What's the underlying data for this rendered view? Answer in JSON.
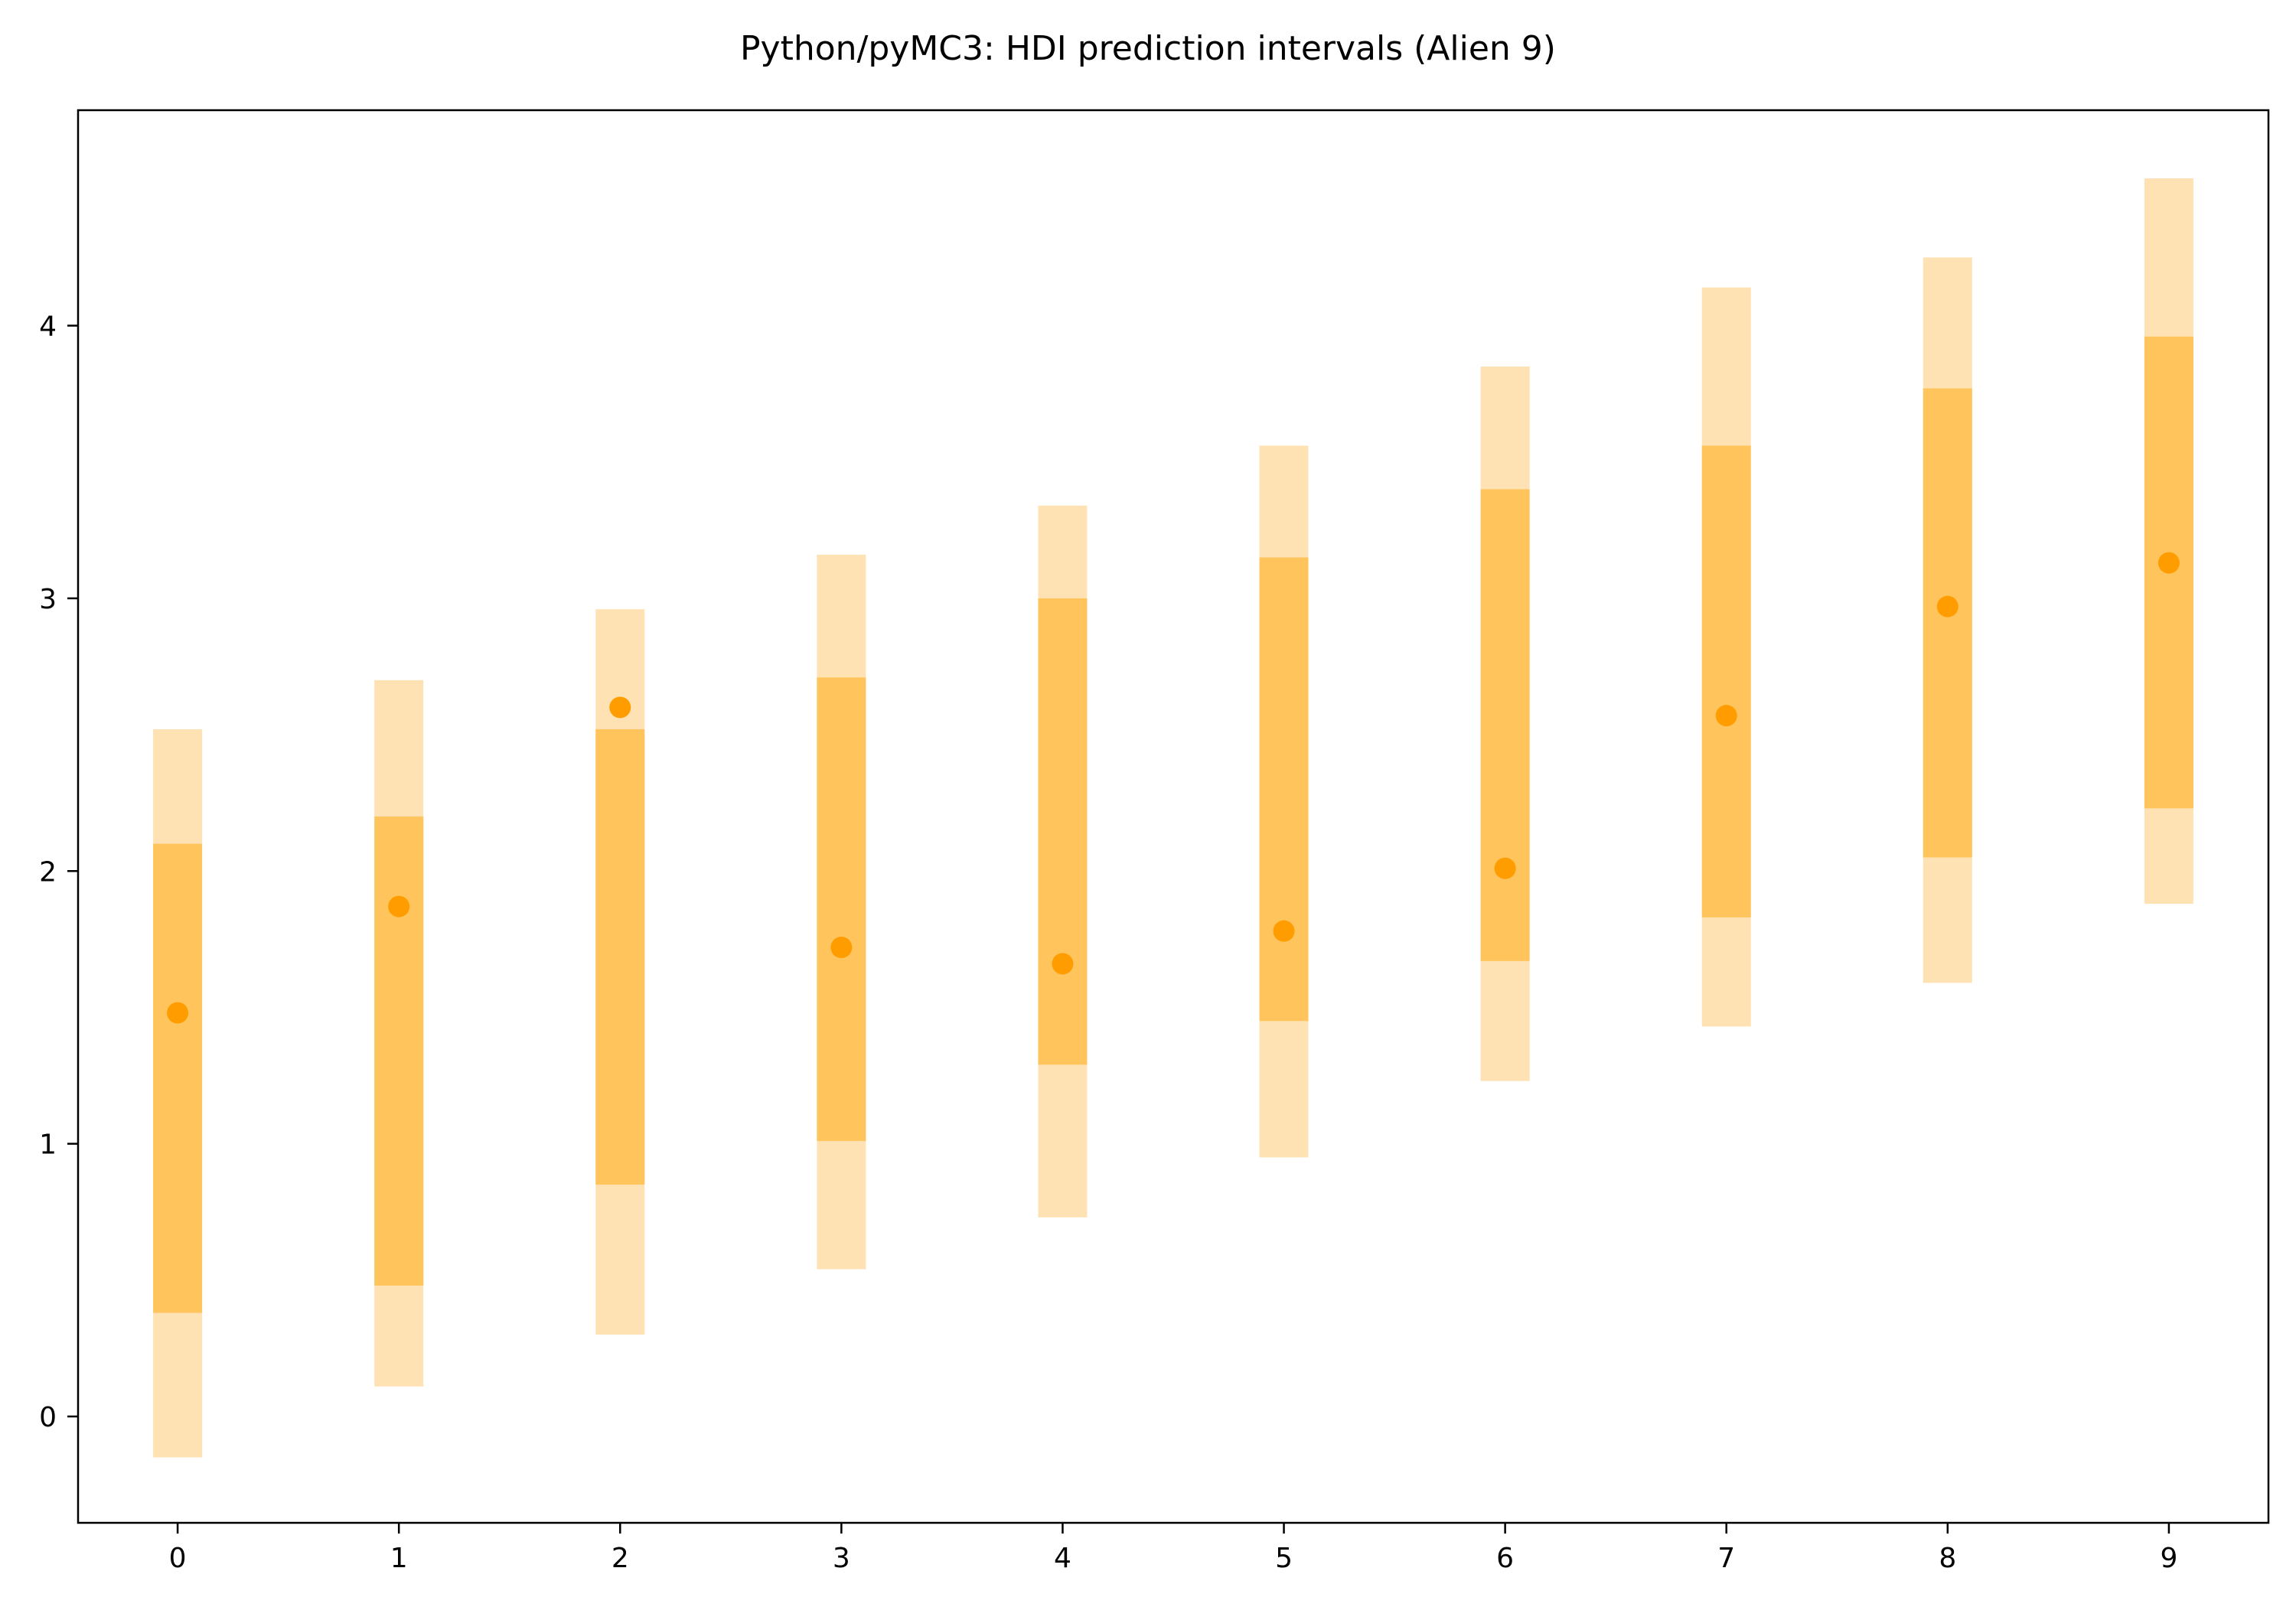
{
  "chart_data": {
    "type": "interval",
    "title": "Python/pyMC3: HDI prediction intervals (Alien 9)",
    "xlabel": "",
    "ylabel": "",
    "x": [
      0,
      1,
      2,
      3,
      4,
      5,
      6,
      7,
      8,
      9
    ],
    "xticks": [
      "0",
      "1",
      "2",
      "3",
      "4",
      "5",
      "6",
      "7",
      "8",
      "9"
    ],
    "yticks": [
      "0",
      "1",
      "2",
      "3",
      "4"
    ],
    "xlim": [
      -0.45,
      9.45
    ],
    "ylim": [
      -0.39,
      4.79
    ],
    "grid": false,
    "series": [
      {
        "kind": "outer-interval",
        "low": [
          -0.15,
          0.11,
          0.3,
          0.54,
          0.73,
          0.95,
          1.23,
          1.43,
          1.59,
          1.88
        ],
        "high": [
          2.52,
          2.7,
          2.96,
          3.16,
          3.34,
          3.56,
          3.85,
          4.14,
          4.25,
          4.54
        ],
        "color": "#ffe2b3"
      },
      {
        "kind": "inner-interval",
        "low": [
          0.38,
          0.48,
          0.85,
          1.01,
          1.29,
          1.45,
          1.67,
          1.83,
          2.05,
          2.23
        ],
        "high": [
          2.1,
          2.2,
          2.52,
          2.71,
          3.0,
          3.15,
          3.4,
          3.56,
          3.77,
          3.96
        ],
        "color": "#ffc45c"
      },
      {
        "kind": "point",
        "values": [
          1.48,
          1.87,
          2.6,
          1.72,
          1.66,
          1.78,
          2.01,
          2.57,
          2.97,
          3.13
        ],
        "color": "#ff9c00"
      }
    ]
  }
}
